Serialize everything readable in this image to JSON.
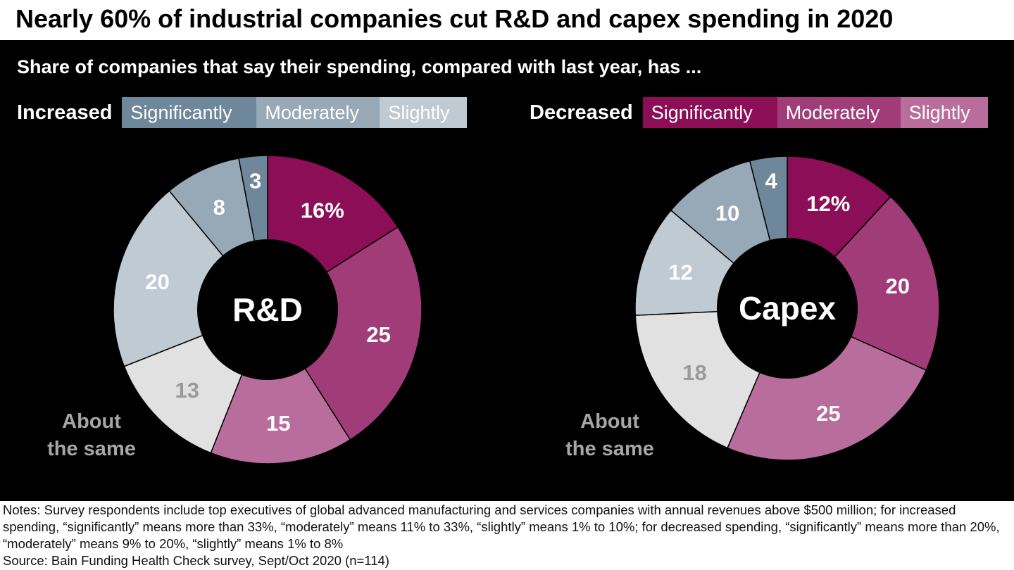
{
  "title": "Nearly 60% of industrial companies cut R&D and capex spending in 2020",
  "subtitle": "Share of companies that say their spending, compared with last year, has ...",
  "legend": {
    "increased": {
      "label": "Increased",
      "items": [
        {
          "label": "Significantly",
          "color": "#6f879a"
        },
        {
          "label": "Moderately",
          "color": "#97a8b6"
        },
        {
          "label": "Slightly",
          "color": "#c0cad3"
        }
      ]
    },
    "decreased": {
      "label": "Decreased",
      "items": [
        {
          "label": "Significantly",
          "color": "#8b0e57"
        },
        {
          "label": "Moderately",
          "color": "#a03c78"
        },
        {
          "label": "Slightly",
          "color": "#b96d9c"
        }
      ]
    }
  },
  "chart_data": [
    {
      "type": "pie",
      "center_label": "R&D",
      "categories": [
        "Decreased significantly",
        "Decreased moderately",
        "Decreased slightly",
        "About the same",
        "Increased slightly",
        "Increased moderately",
        "Increased significantly"
      ],
      "values": [
        16,
        25,
        15,
        13,
        20,
        8,
        3
      ],
      "labels": [
        "16%",
        "25",
        "15",
        "13",
        "20",
        "8",
        "3"
      ],
      "colors": [
        "#8b0e57",
        "#a03c78",
        "#b96d9c",
        "#e1e1e1",
        "#c0cad3",
        "#97a8b6",
        "#6f879a"
      ],
      "label_colors": [
        "#fff",
        "#fff",
        "#fff",
        "#9a9a9a",
        "#fff",
        "#fff",
        "#fff"
      ],
      "annotation": [
        "About",
        "the same"
      ]
    },
    {
      "type": "pie",
      "center_label": "Capex",
      "categories": [
        "Decreased significantly",
        "Decreased moderately",
        "Decreased slightly",
        "About the same",
        "Increased slightly",
        "Increased moderately",
        "Increased significantly"
      ],
      "values": [
        12,
        20,
        25,
        18,
        12,
        10,
        4
      ],
      "labels": [
        "12%",
        "20",
        "25",
        "18",
        "12",
        "10",
        "4"
      ],
      "colors": [
        "#8b0e57",
        "#a03c78",
        "#b96d9c",
        "#e1e1e1",
        "#c0cad3",
        "#97a8b6",
        "#6f879a"
      ],
      "label_colors": [
        "#fff",
        "#fff",
        "#fff",
        "#9a9a9a",
        "#fff",
        "#fff",
        "#fff"
      ],
      "annotation": [
        "About",
        "the same"
      ]
    }
  ],
  "notes": "Notes: Survey respondents include top executives of global advanced manufacturing and services companies with annual revenues above $500 million; for increased spending, “significantly” means more than 33%, “moderately” means 11% to 33%, “slightly” means 1% to 10%; for decreased spending, “significantly” means more than 20%, “moderately” means 9% to 20%, “slightly” means 1% to 8%",
  "source": "Source: Bain Funding Health Check survey, Sept/Oct 2020 (n=114)"
}
